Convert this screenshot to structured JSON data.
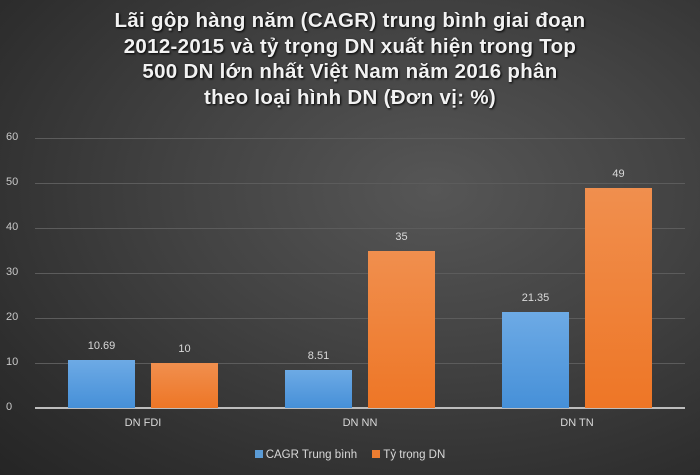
{
  "chart_data": {
    "type": "bar",
    "title": "Lãi gộp hàng năm (CAGR) trung bình giai đoạn 2012-2015 và tỷ trọng DN xuất hiện trong Top 500 DN lớn nhất Việt Nam năm 2016 phân theo loại hình DN (Đơn vị: %)",
    "title_lines": [
      "Lãi gộp hàng năm (CAGR) trung bình giai đoạn",
      "2012-2015 và tỷ trọng DN xuất hiện trong Top",
      "500 DN lớn nhất Việt Nam năm 2016 phân",
      "theo loại hình DN (Đơn vị: %)"
    ],
    "categories": [
      "DN FDI",
      "DN NN",
      "DN TN"
    ],
    "series": [
      {
        "name": "CAGR Trung bình",
        "color": "#5b9bd5",
        "values": [
          10.69,
          8.51,
          21.35
        ],
        "labels": [
          "10.69",
          "8.51",
          "21.35"
        ]
      },
      {
        "name": "Tỷ trọng DN",
        "color": "#ed7d31",
        "values": [
          10,
          35,
          49
        ],
        "labels": [
          "10",
          "35",
          "49"
        ]
      }
    ],
    "xlabel": "",
    "ylabel": "",
    "ylim": [
      0,
      60
    ],
    "yticks": [
      "0",
      "10",
      "20",
      "30",
      "40",
      "50",
      "60"
    ],
    "grid": true,
    "legend_position": "bottom"
  }
}
